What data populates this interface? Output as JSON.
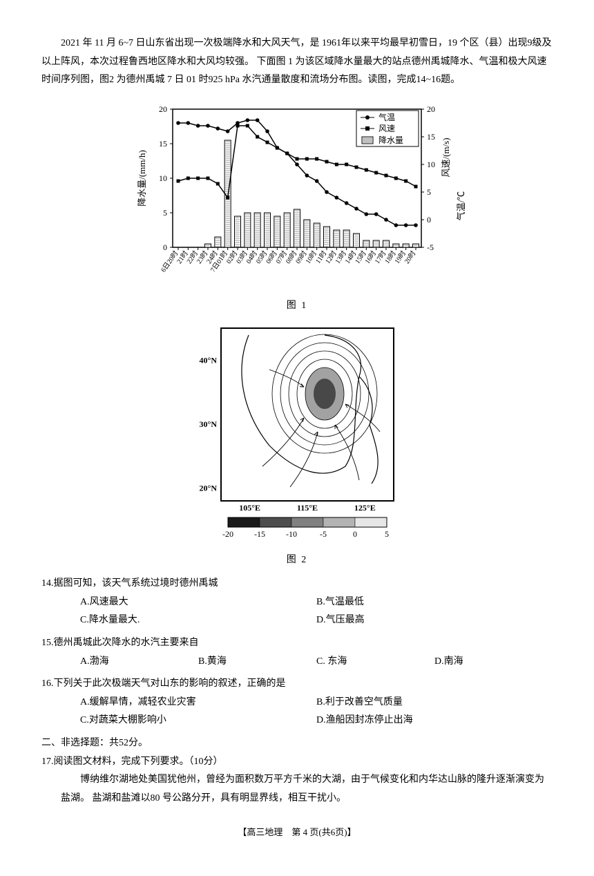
{
  "intro": "2021 年 11 月 6~7 日山东省出现一次极端降水和大风天气，是 1961年以来平均最早初雪日，19 个区（县）出现9级及以上阵风，本次过程鲁西地区降水和大风均较强。 下面图 1 为该区域降水量最大的站点德州禹城降水、气温和极大风速时间序列图，图2 为德州禹城 7 日 01 时925 hPa 水汽通量散度和流场分布图。读图，完成14~16题。",
  "fig1": {
    "caption": "图 1",
    "legend": {
      "temp": "气温",
      "wind": "风速",
      "precip": "降水量"
    },
    "yleft_label": "降水量/(mm/h)",
    "yright_label1": "气温/℃",
    "yright_label2": "风速/(m/s)",
    "yleft_ticks": [
      0,
      5,
      10,
      15,
      20
    ],
    "yright_ticks": [
      -5,
      0,
      5,
      10,
      15,
      20
    ],
    "x_labels": [
      "6日20时",
      "21时",
      "22时",
      "23时",
      "24时",
      "7日01时",
      "02时",
      "03时",
      "04时",
      "05时",
      "06时",
      "07时",
      "08时",
      "09时",
      "10时",
      "11时",
      "12时",
      "13时",
      "14时",
      "15时",
      "16时",
      "17时",
      "18时",
      "19时",
      "20时"
    ],
    "precip": [
      0,
      0,
      0,
      0.5,
      1.5,
      15.5,
      4.5,
      5,
      5,
      5,
      4.5,
      5,
      5.5,
      4,
      3.5,
      3,
      2.5,
      2.5,
      2,
      1,
      1,
      1,
      0.5,
      0.5,
      0.5
    ],
    "temp": [
      17.5,
      17.5,
      17,
      17,
      16.5,
      16,
      17.5,
      18,
      18,
      16,
      13,
      12,
      10,
      8,
      7,
      5,
      4,
      3,
      2,
      1,
      1,
      0,
      -1,
      -1,
      -1
    ],
    "wind": [
      7,
      7.5,
      7.5,
      7.5,
      6.5,
      4,
      17,
      17,
      15,
      14,
      13,
      12,
      11,
      11,
      11,
      10.5,
      10,
      10,
      9.5,
      9,
      8.5,
      8,
      7.5,
      7,
      6
    ],
    "colors": {
      "axis": "#000000",
      "bar": "#ffffff",
      "bar_border": "#000000",
      "line": "#000000"
    }
  },
  "fig2": {
    "caption": "图 2",
    "lat_ticks": [
      "40°N",
      "30°N",
      "20°N"
    ],
    "lon_ticks": [
      "105°E",
      "115°E",
      "125°E"
    ],
    "scale_ticks": [
      "-20",
      "-15",
      "-10",
      "-5",
      "0",
      "5"
    ]
  },
  "q14": {
    "stem": "14.据图可知，该天气系统过境时德州禹城",
    "A": "A.风速最大",
    "B": "B.气温最低",
    "C": "C.降水量最大.",
    "D": "D.气压最高"
  },
  "q15": {
    "stem": "15.德州禹城此次降水的水汽主要来自",
    "A": "A.渤海",
    "B": "B.黄海",
    "C": "C. 东海",
    "D": "D.南海"
  },
  "q16": {
    "stem": "16.下列关于此次极端天气对山东的影响的叙述，正确的是",
    "A": "A.缓解旱情，减轻农业灾害",
    "B": "B.利于改善空气质量",
    "C": "C.对蔬菜大棚影响小",
    "D": "D.渔船因封冻停止出海"
  },
  "section2": "二、非选择题：共52分。",
  "q17": {
    "stem": "17.阅读图文材料，完成下列要求。（10分）",
    "para": "博纳维尔湖地处美国犹他州，曾经为面积数万平方千米的大湖，由于气候变化和内华达山脉的隆升逐渐演变为盐湖。 盐湖和盐滩以80 号公路分开，具有明显界线，相互干扰小。"
  },
  "footer": "【高三地理　第 4 页(共6页)】"
}
